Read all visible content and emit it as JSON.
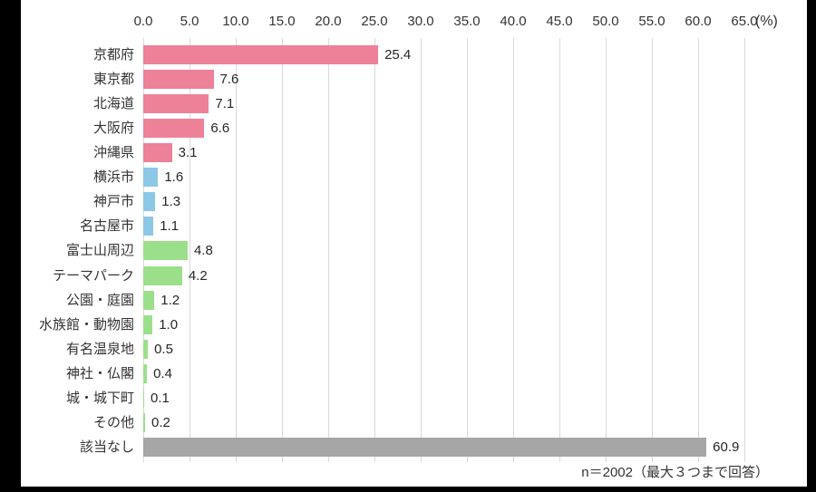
{
  "frame": {
    "background": "#000000",
    "panel_background": "#ffffff"
  },
  "chart_data": {
    "type": "bar",
    "orientation": "horizontal",
    "title": "",
    "xlabel": "",
    "ylabel": "",
    "unit_label": "(%)",
    "xlim": [
      0,
      65
    ],
    "xtick_step": 5,
    "xticks": [
      "0.0",
      "5.0",
      "10.0",
      "15.0",
      "20.0",
      "25.0",
      "30.0",
      "35.0",
      "40.0",
      "45.0",
      "50.0",
      "55.0",
      "60.0",
      "65.0"
    ],
    "grid": true,
    "legend": "none",
    "note": "n＝2002（最大３つまで回答）",
    "categories": [
      "京都府",
      "東京都",
      "北海道",
      "大阪府",
      "沖縄県",
      "横浜市",
      "神戸市",
      "名古屋市",
      "富士山周辺",
      "テーマパーク",
      "公園・庭園",
      "水族館・動物園",
      "有名温泉地",
      "神社・仏閣",
      "城・城下町",
      "その他",
      "該当なし"
    ],
    "values": [
      25.4,
      7.6,
      7.1,
      6.6,
      3.1,
      1.6,
      1.3,
      1.1,
      4.8,
      4.2,
      1.2,
      1.0,
      0.5,
      0.4,
      0.1,
      0.2,
      60.9
    ],
    "value_labels": [
      "25.4",
      "7.6",
      "7.1",
      "6.6",
      "3.1",
      "1.6",
      "1.3",
      "1.1",
      "4.8",
      "4.2",
      "1.2",
      "1.0",
      "0.5",
      "0.4",
      "0.1",
      "0.2",
      "60.9"
    ],
    "bar_color_keys": [
      "pink",
      "pink",
      "pink",
      "pink",
      "pink",
      "blue",
      "blue",
      "blue",
      "green",
      "green",
      "green",
      "green",
      "green",
      "green",
      "green",
      "green",
      "gray"
    ]
  },
  "colors": {
    "pink": "#ec8197",
    "blue": "#8cc7e6",
    "green": "#9cdf8b",
    "gray": "#a6a6a6",
    "grid": "#d9d9d9",
    "axis_text": "#333333",
    "value_text": "#262626"
  }
}
